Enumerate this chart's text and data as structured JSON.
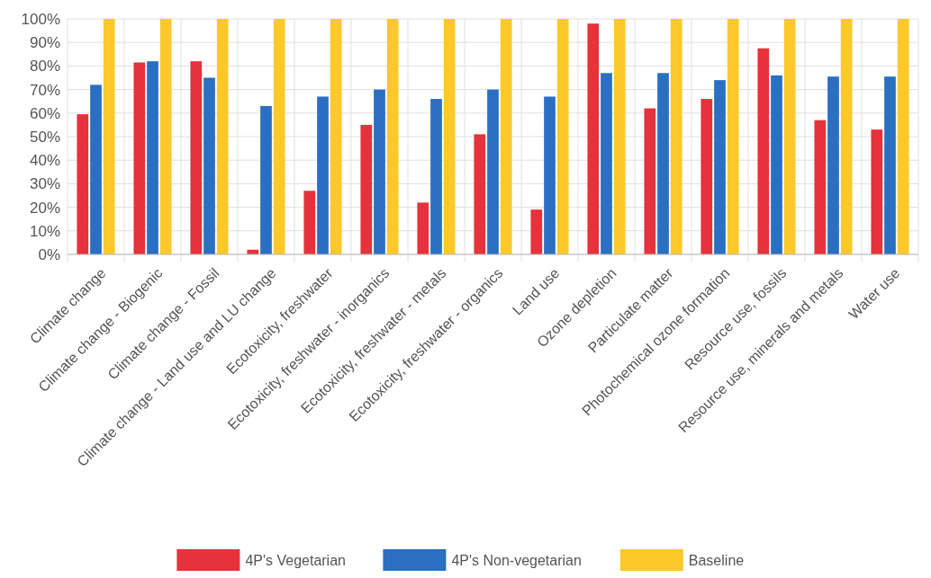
{
  "chart_data": {
    "type": "bar",
    "categories": [
      "Climate change",
      "Climate change - Biogenic",
      "Climate change - Fossil",
      "Climate change - Land use and LU change",
      "Ecotoxicity, freshwater",
      "Ecotoxicity, freshwater - inorganics",
      "Ecotoxicity, freshwater - metals",
      "Ecotoxicity, freshwater - organics",
      "Land use",
      "Ozone depletion",
      "Particulate matter",
      "Photochemical ozone formation",
      "Resource use, fossils",
      "Resource use, minerals and metals",
      "Water use"
    ],
    "series": [
      {
        "name": "4P's Vegetarian",
        "color": "#e5323b",
        "values": [
          59.5,
          81.5,
          82,
          2,
          27,
          55,
          22,
          51,
          19,
          98,
          62,
          66,
          87.5,
          57,
          53
        ]
      },
      {
        "name": "4P's Non-vegetarian",
        "color": "#2a6fc2",
        "values": [
          72,
          82,
          75,
          63,
          67,
          70,
          66,
          70,
          67,
          77,
          77,
          74,
          76,
          75.5,
          75.5
        ]
      },
      {
        "name": "Baseline",
        "color": "#fdc82a",
        "values": [
          100,
          100,
          100,
          100,
          100,
          100,
          100,
          100,
          100,
          100,
          100,
          100,
          100,
          100,
          100
        ]
      }
    ],
    "ylim": [
      0,
      100
    ],
    "yticks": [
      {
        "value": 0,
        "label": "0%"
      },
      {
        "value": 10,
        "label": "10%"
      },
      {
        "value": 20,
        "label": "20%"
      },
      {
        "value": 30,
        "label": "30%"
      },
      {
        "value": 40,
        "label": "40%"
      },
      {
        "value": 50,
        "label": "50%"
      },
      {
        "value": 60,
        "label": "60%"
      },
      {
        "value": 70,
        "label": "70%"
      },
      {
        "value": 80,
        "label": "80%"
      },
      {
        "value": 90,
        "label": "90%"
      },
      {
        "value": 100,
        "label": "100%"
      }
    ],
    "grid": true,
    "legend": "bottom"
  }
}
